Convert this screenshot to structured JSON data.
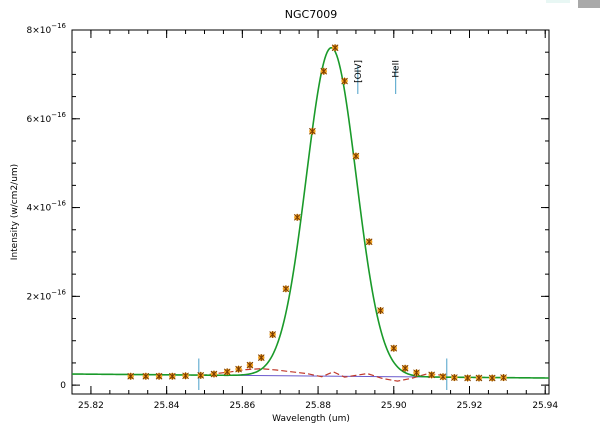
{
  "colors": {
    "fit": "#1a9a2a",
    "marker_fill": "#f5a623",
    "marker_cross": "#7a3b00",
    "residual": "#c0392b",
    "continuum": "#6a5acd",
    "line_marker": "#4aa0c8",
    "frame": "#000000",
    "corner_light": "#e8f7f4",
    "corner_dark": "#a9a9a9"
  },
  "chart_data": {
    "type": "scatter",
    "title": "NGC7009",
    "xlabel": "Wavelength (um)",
    "ylabel": "Intensity (w/cm2/um)",
    "xlim": [
      25.815,
      25.941
    ],
    "ylim": [
      -2e-17,
      8e-16
    ],
    "x_ticks": [
      25.82,
      25.84,
      25.86,
      25.88,
      25.9,
      25.92,
      25.94
    ],
    "x_tick_labels": [
      "25.82",
      "25.84",
      "25.86",
      "25.88",
      "25.90",
      "25.92",
      "25.94"
    ],
    "y_ticks": [
      0,
      2e-16,
      4e-16,
      6e-16,
      8e-16
    ],
    "y_tick_labels": [
      {
        "base": "0",
        "exp": ""
      },
      {
        "base": "2×10",
        "exp": "−16"
      },
      {
        "base": "4×10",
        "exp": "−16"
      },
      {
        "base": "6×10",
        "exp": "−16"
      },
      {
        "base": "8×10",
        "exp": "−16"
      }
    ],
    "observed": {
      "x": [
        25.8305,
        25.8345,
        25.838,
        25.8415,
        25.845,
        25.849,
        25.8525,
        25.856,
        25.859,
        25.862,
        25.865,
        25.868,
        25.8715,
        25.8745,
        25.8785,
        25.8815,
        25.8845,
        25.887,
        25.89,
        25.8935,
        25.8965,
        25.9,
        25.903,
        25.906,
        25.91,
        25.913,
        25.916,
        25.9195,
        25.9225,
        25.926,
        25.929
      ],
      "y": [
        2e-17,
        2e-17,
        2e-17,
        2e-17,
        2.1e-17,
        2.2e-17,
        2.5e-17,
        3e-17,
        3.6e-17,
        4.5e-17,
        6.2e-17,
        1.14e-16,
        2.17e-16,
        3.78e-16,
        5.72e-16,
        7.07e-16,
        7.6e-16,
        6.85e-16,
        5.16e-16,
        3.23e-16,
        1.68e-16,
        8.3e-17,
        3.8e-17,
        2.8e-17,
        2.3e-17,
        1.9e-17,
        1.7e-17,
        1.6e-17,
        1.6e-17,
        1.6e-17,
        1.7e-17
      ]
    },
    "fit": {
      "center": 25.8835,
      "peak": 7.4e-16,
      "sigma": 0.0066,
      "continuum_start": 2.5e-17,
      "continuum_end": 1.6e-17
    },
    "residual": {
      "x": [
        25.849,
        25.853,
        25.857,
        25.861,
        25.865,
        25.869,
        25.873,
        25.877,
        25.881,
        25.884,
        25.887,
        25.89,
        25.893,
        25.897,
        25.901,
        25.905,
        25.909,
        25.912,
        25.914
      ],
      "y": [
        2.2e-17,
        2.6e-17,
        3e-17,
        3.5e-17,
        3.7e-17,
        3.4e-17,
        3e-17,
        2.6e-17,
        1.9e-17,
        3e-17,
        1.8e-17,
        2.2e-17,
        2.6e-17,
        1.5e-17,
        9e-18,
        1.6e-17,
        2.6e-17,
        2.3e-17,
        2e-17
      ]
    },
    "fit_window": [
      25.8485,
      25.914
    ],
    "line_ids": [
      {
        "label": "[OIV]",
        "x": 25.8905
      },
      {
        "label": "HeII",
        "x": 25.9005
      }
    ]
  }
}
